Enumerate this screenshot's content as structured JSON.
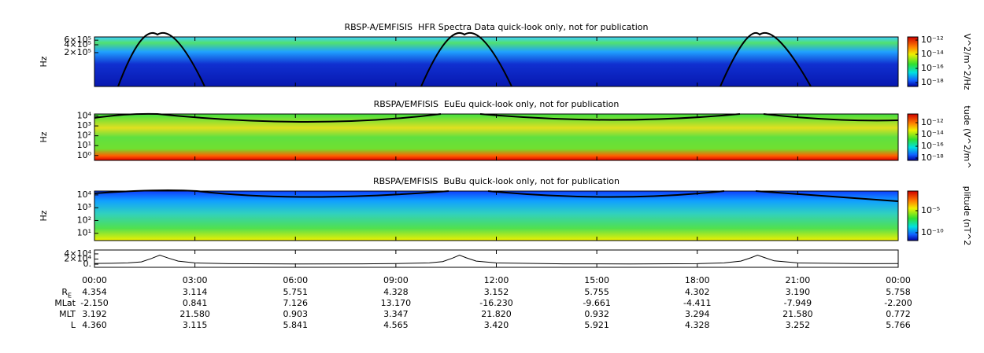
{
  "chart_data": [
    {
      "type": "spectrogram",
      "title": "RBSP-A/EMFISIS  HFR Spectra Data quick-look only, not for publication",
      "ylabel": "Hz",
      "ylog": true,
      "ylim": [
        10000,
        800000
      ],
      "yticks": [
        {
          "value": 200000,
          "label": "2×10⁵"
        },
        {
          "value": 400000,
          "label": "4×10⁵"
        },
        {
          "value": 600000,
          "label": "6×10⁵"
        }
      ],
      "colorbar_label": "V^2/m^2/Hz",
      "clim": [
        2.8e-19,
        2.8e-12
      ],
      "cticks": [
        {
          "value": 1e-12,
          "label": "10⁻¹²"
        },
        {
          "value": 1e-14,
          "label": "10⁻¹⁴"
        },
        {
          "value": 1e-16,
          "label": "10⁻¹⁶"
        },
        {
          "value": 1e-18,
          "label": "10⁻¹⁸"
        }
      ]
    },
    {
      "type": "spectrogram",
      "title": "RBSPA/EMFISIS  EuEu quick-look only, not for publication",
      "ylabel": "Hz",
      "ylog": true,
      "ylim": [
        0.32,
        16000
      ],
      "yticks": [
        {
          "value": 1,
          "label": "10⁰"
        },
        {
          "value": 10,
          "label": "10¹"
        },
        {
          "value": 100,
          "label": "10²"
        },
        {
          "value": 1000,
          "label": "10³"
        },
        {
          "value": 10000,
          "label": "10⁴"
        }
      ],
      "colorbar_label": "tude (V^2/m^",
      "clim": [
        4e-19,
        3e-11
      ],
      "cticks": [
        {
          "value": 1e-12,
          "label": "10⁻¹²"
        },
        {
          "value": 1e-14,
          "label": "10⁻¹⁴"
        },
        {
          "value": 1e-16,
          "label": "10⁻¹⁶"
        },
        {
          "value": 1e-18,
          "label": "10⁻¹⁸"
        }
      ]
    },
    {
      "type": "spectrogram",
      "title": "RBSPA/EMFISIS  BuBu quick-look only, not for publication",
      "ylabel": "Hz",
      "ylog": true,
      "ylim": [
        2.7,
        20000
      ],
      "yticks": [
        {
          "value": 10,
          "label": "10¹"
        },
        {
          "value": 100,
          "label": "10²"
        },
        {
          "value": 1000,
          "label": "10³"
        },
        {
          "value": 10000,
          "label": "10⁴"
        }
      ],
      "colorbar_label": "plitude (nT^2",
      "clim": [
        1.6e-12,
        0.29
      ],
      "cticks": [
        {
          "value": 1e-05,
          "label": "10⁻⁵"
        },
        {
          "value": 1e-10,
          "label": "10⁻¹⁰"
        }
      ]
    },
    {
      "type": "line",
      "xlim": [
        0,
        24
      ],
      "xticks": [
        {
          "value": 0,
          "label": "00:00"
        },
        {
          "value": 3,
          "label": "03:00"
        },
        {
          "value": 6,
          "label": "06:00"
        },
        {
          "value": 9,
          "label": "09:00"
        },
        {
          "value": 12,
          "label": "12:00"
        },
        {
          "value": 15,
          "label": "15:00"
        },
        {
          "value": 18,
          "label": "18:00"
        },
        {
          "value": 21,
          "label": "21:00"
        },
        {
          "value": 24,
          "label": "00:00"
        }
      ],
      "ylim": [
        -12000,
        55000
      ],
      "yticks": [
        {
          "value": 0,
          "label": "0."
        },
        {
          "value": 20000,
          "label": "2×10⁴"
        },
        {
          "value": 40000,
          "label": "4×10⁴"
        }
      ],
      "x": [
        0,
        0.5,
        1,
        1.4,
        1.7,
        1.95,
        2.2,
        2.5,
        3,
        4,
        6,
        8,
        9,
        10,
        10.4,
        10.7,
        10.9,
        11.1,
        11.4,
        12,
        14,
        16,
        18,
        18.8,
        19.3,
        19.6,
        19.8,
        20,
        20.3,
        21,
        23,
        24
      ],
      "values": [
        3000,
        3500,
        5000,
        9000,
        22000,
        35000,
        24000,
        12000,
        5000,
        2000,
        1000,
        1500,
        2500,
        5000,
        10000,
        24000,
        35000,
        25000,
        12000,
        5000,
        1500,
        1000,
        2000,
        5000,
        12000,
        25000,
        35000,
        26000,
        13000,
        5000,
        2000,
        2500
      ],
      "color": "#000000"
    }
  ],
  "ephemeris": [
    {
      "label": "R",
      "sub": "E",
      "values": [
        "4.354",
        "3.114",
        "5.751",
        "4.328",
        "3.152",
        "5.755",
        "4.302",
        "3.190",
        "5.758"
      ]
    },
    {
      "label": "MLat",
      "values": [
        "-2.150",
        "0.841",
        "7.126",
        "13.170",
        "-16.230",
        "-9.661",
        "-4.411",
        "-7.949",
        "-2.200"
      ]
    },
    {
      "label": "MLT",
      "values": [
        "3.192",
        "21.580",
        "0.903",
        "3.347",
        "21.820",
        "0.932",
        "3.294",
        "21.580",
        "0.772"
      ]
    },
    {
      "label": "L",
      "values": [
        "4.360",
        "3.115",
        "5.841",
        "4.565",
        "3.420",
        "5.921",
        "4.328",
        "3.252",
        "5.766"
      ]
    }
  ]
}
